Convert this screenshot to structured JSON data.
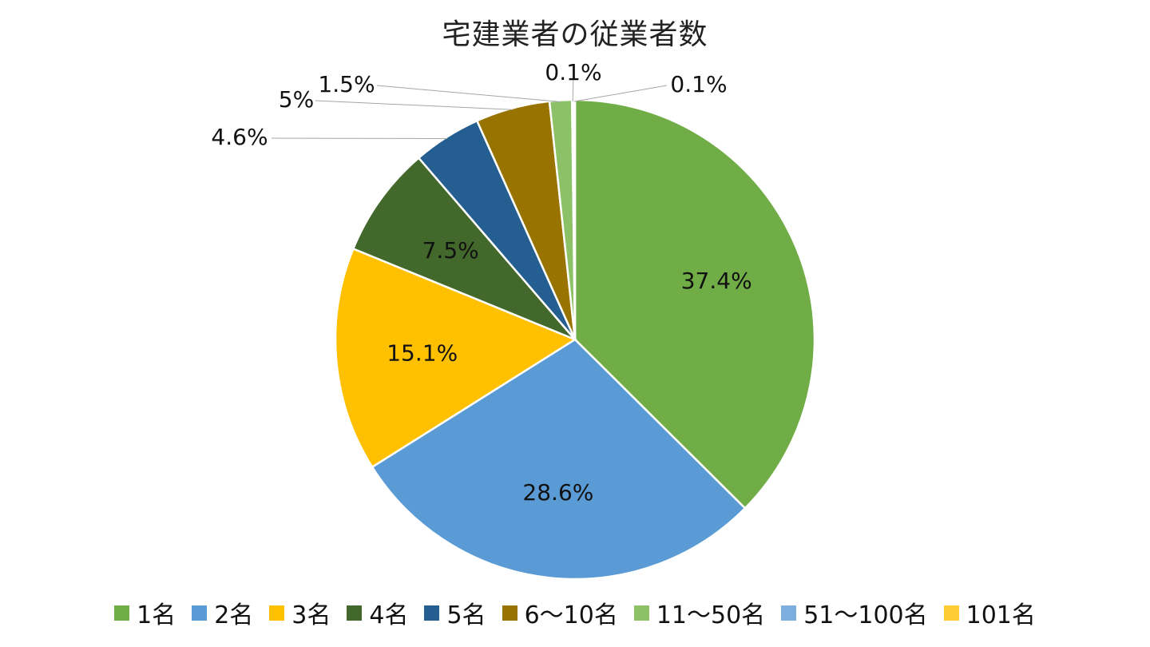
{
  "chart_data": {
    "type": "pie",
    "title": "宅建業者の従業者数",
    "legend_position": "bottom",
    "start_angle_deg": 0,
    "direction": "clockwise",
    "slices": [
      {
        "label": "1名",
        "value": 37.4,
        "display": "37.4%",
        "color": "#70AD47",
        "label_placement": "inside"
      },
      {
        "label": "2名",
        "value": 28.6,
        "display": "28.6%",
        "color": "#5B9BD5",
        "label_placement": "inside"
      },
      {
        "label": "3名",
        "value": 15.1,
        "display": "15.1%",
        "color": "#FFC000",
        "label_placement": "inside"
      },
      {
        "label": "4名",
        "value": 7.5,
        "display": "7.5%",
        "color": "#43682B",
        "label_placement": "inside"
      },
      {
        "label": "5名",
        "value": 4.6,
        "display": "4.6%",
        "color": "#255E91",
        "label_placement": "outside"
      },
      {
        "label": "6～10名",
        "value": 5,
        "display": "5%",
        "color": "#997300",
        "label_placement": "outside"
      },
      {
        "label": "11～50名",
        "value": 1.5,
        "display": "1.5%",
        "color": "#8CC168",
        "label_placement": "outside"
      },
      {
        "label": "51～100名",
        "value": 0.1,
        "display": "0.1%",
        "color": "#7CAFDD",
        "label_placement": "outside"
      },
      {
        "label": "101名",
        "value": 0.1,
        "display": "0.1%",
        "color": "#FFCD33",
        "label_placement": "outside"
      }
    ]
  }
}
